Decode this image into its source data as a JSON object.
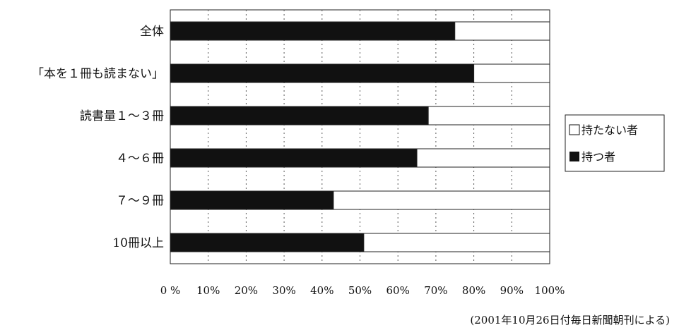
{
  "chart_data": {
    "type": "bar",
    "orientation": "horizontal",
    "stacked": true,
    "categories": [
      "全体",
      "「本を１冊も読まない」",
      "読書量１～３冊",
      "４～６冊",
      "７～９冊",
      "10冊以上"
    ],
    "series": [
      {
        "name": "持つ者",
        "values": [
          75,
          80,
          68,
          65,
          43,
          51
        ],
        "color": "#111111"
      },
      {
        "name": "持たない者",
        "values": [
          25,
          20,
          32,
          35,
          57,
          49
        ],
        "color": "#ffffff"
      }
    ],
    "xlim": [
      0,
      100
    ],
    "x_ticks": [
      0,
      10,
      20,
      30,
      40,
      50,
      60,
      70,
      80,
      90,
      100
    ],
    "x_tick_labels": [
      "0 %",
      "10%",
      "20%",
      "30%",
      "40%",
      "50%",
      "60%",
      "70%",
      "80%",
      "90%",
      "100%"
    ],
    "grid": "vertical-dotted",
    "legend": [
      {
        "label": "持たない者",
        "fill": "#ffffff"
      },
      {
        "label": "持つ者",
        "fill": "#111111"
      }
    ],
    "legend_position": "right",
    "source_note": "(2001年10月26日付毎日新聞朝刊による)"
  }
}
